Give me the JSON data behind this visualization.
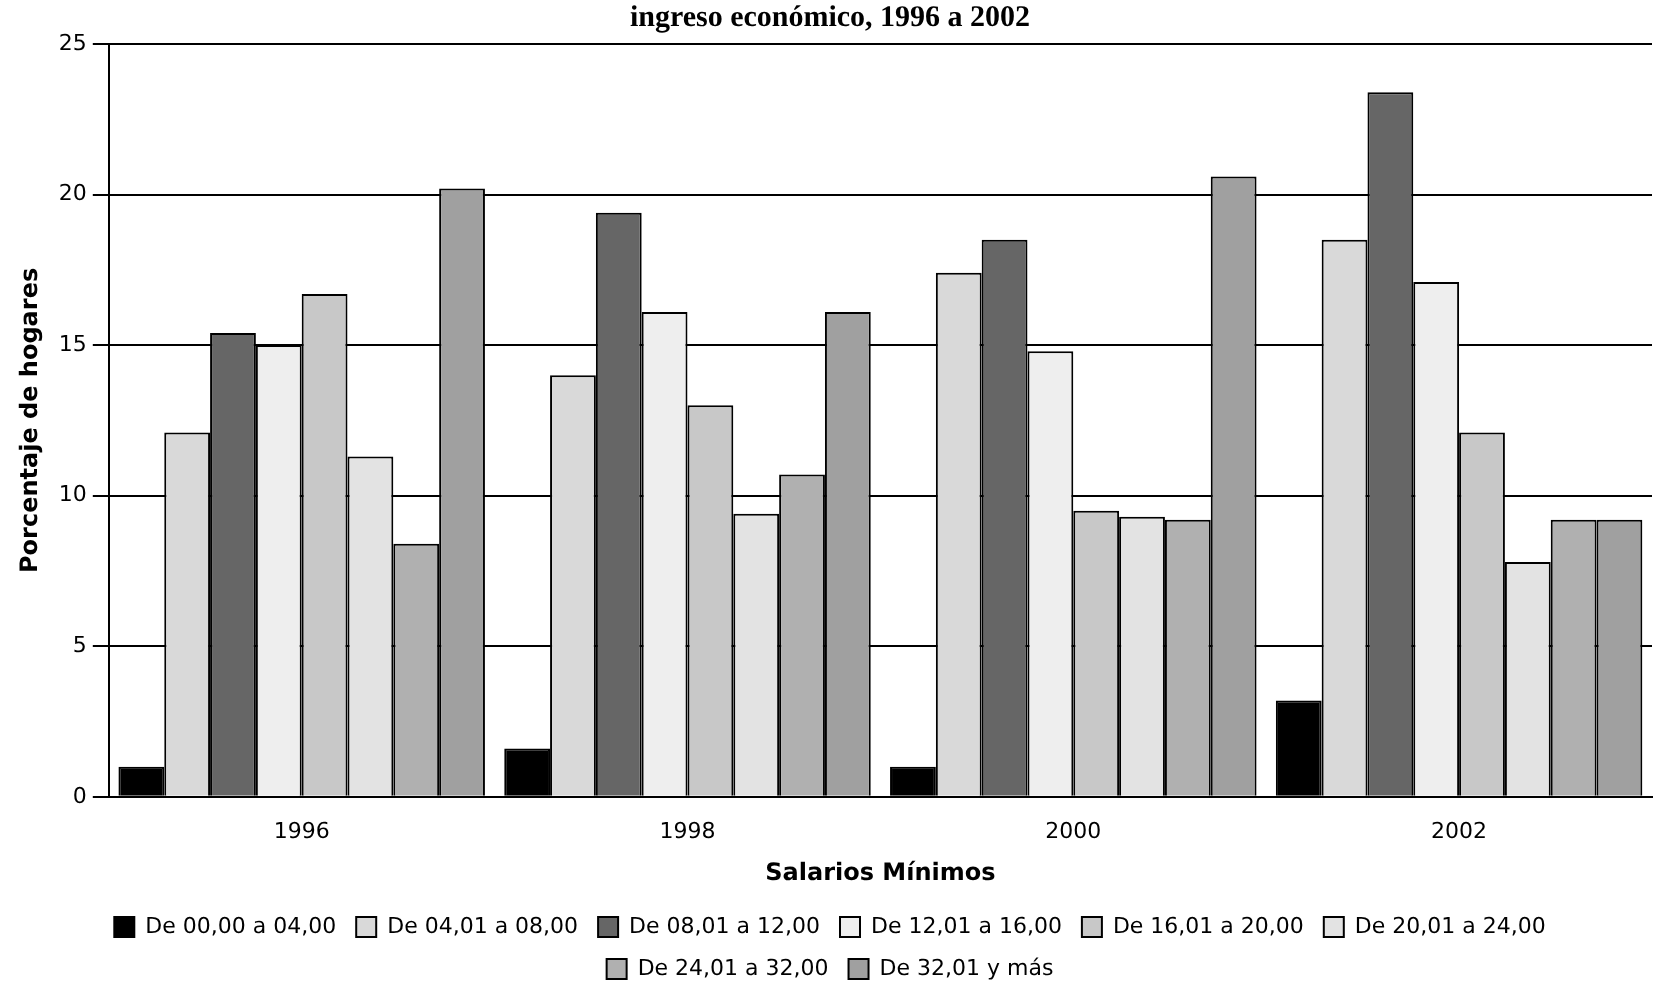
{
  "chart_data": {
    "type": "bar",
    "title": "ingreso económico, 1996 a 2002",
    "xlabel": "Salarios Mínimos",
    "ylabel": "Porcentaje de hogares",
    "categories": [
      "1996",
      "1998",
      "2000",
      "2002"
    ],
    "series": [
      {
        "name": "De 00,00 a 04,00",
        "color": "#000000",
        "values": [
          1.0,
          1.6,
          1.0,
          3.2
        ]
      },
      {
        "name": "De 04,01 a 08,00",
        "color": "#d9d9d9",
        "values": [
          12.1,
          14.0,
          17.4,
          18.5
        ]
      },
      {
        "name": "De 08,01 a 12,00",
        "color": "#666666",
        "values": [
          15.4,
          19.4,
          18.5,
          23.4
        ]
      },
      {
        "name": "De 12,01 a 16,00",
        "color": "#eeeeee",
        "values": [
          15.0,
          16.1,
          14.8,
          17.1
        ]
      },
      {
        "name": "De 16,01 a 20,00",
        "color": "#c8c8c8",
        "values": [
          16.7,
          13.0,
          9.5,
          12.1
        ]
      },
      {
        "name": "De 20,01 a 24,00",
        "color": "#e3e3e3",
        "values": [
          11.3,
          9.4,
          9.3,
          7.8
        ]
      },
      {
        "name": "De 24,01 a 32,00",
        "color": "#b0b0b0",
        "values": [
          8.4,
          10.7,
          9.2,
          9.2
        ]
      },
      {
        "name": "De 32,01 y más",
        "color": "#a0a0a0",
        "values": [
          20.2,
          16.1,
          20.6,
          9.2
        ]
      }
    ],
    "ylim": [
      0,
      25
    ],
    "yticks": [
      0,
      5,
      10,
      15,
      20,
      25
    ],
    "grid": "y",
    "legend": "bottom"
  }
}
